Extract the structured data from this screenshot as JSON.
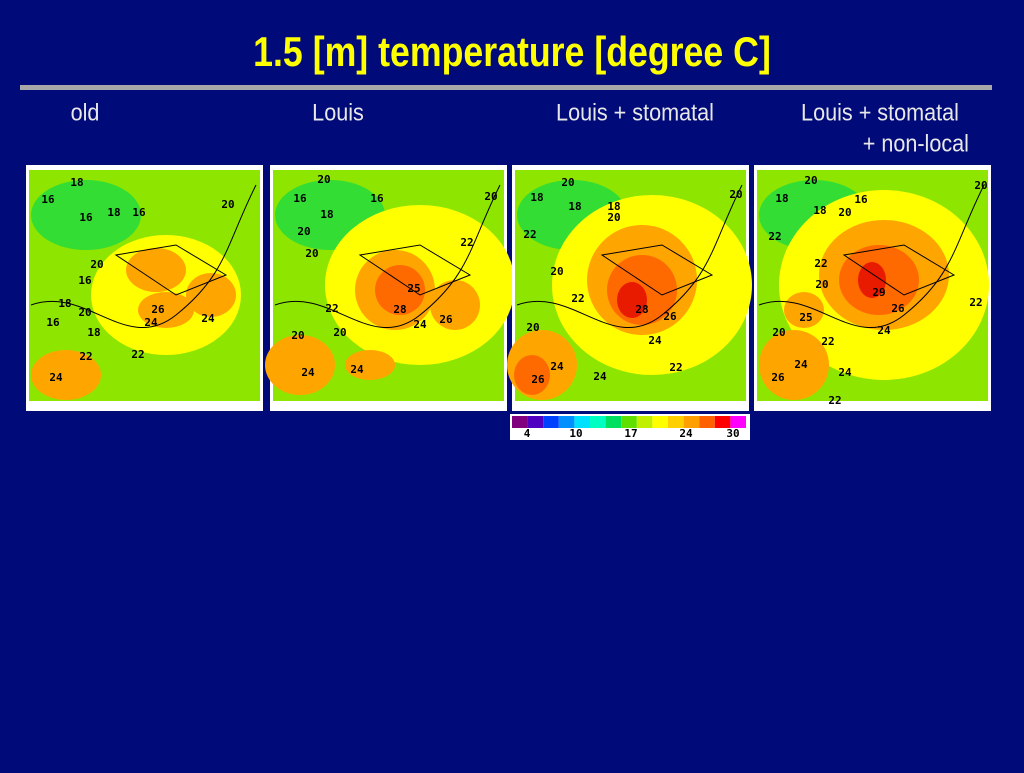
{
  "header": {
    "title": "1.5 [m] temperature [degree C]"
  },
  "panels": [
    {
      "title": [
        "old"
      ],
      "labels": [
        18,
        16,
        16,
        18,
        16,
        20,
        20,
        16,
        18,
        20,
        16,
        18,
        26,
        24,
        24,
        22,
        22,
        24
      ]
    },
    {
      "title": [
        "Louis"
      ],
      "labels": [
        20,
        16,
        16,
        18,
        20,
        20,
        22,
        20,
        25,
        22,
        28,
        24,
        26,
        20,
        20,
        24,
        24
      ]
    },
    {
      "title": [
        "Louis + stomatal"
      ],
      "labels": [
        20,
        18,
        18,
        18,
        20,
        20,
        22,
        20,
        22,
        28,
        26,
        20,
        24,
        26,
        24,
        24,
        22
      ]
    },
    {
      "title": [
        "Louis + stomatal",
        "+ non-local"
      ],
      "labels": [
        20,
        18,
        16,
        18,
        20,
        20,
        22,
        22,
        20,
        29,
        26,
        22,
        25,
        20,
        22,
        24,
        26,
        24,
        24,
        22
      ]
    }
  ],
  "colorbar": {
    "ticks": [
      4,
      10,
      17,
      24,
      30
    ]
  }
}
